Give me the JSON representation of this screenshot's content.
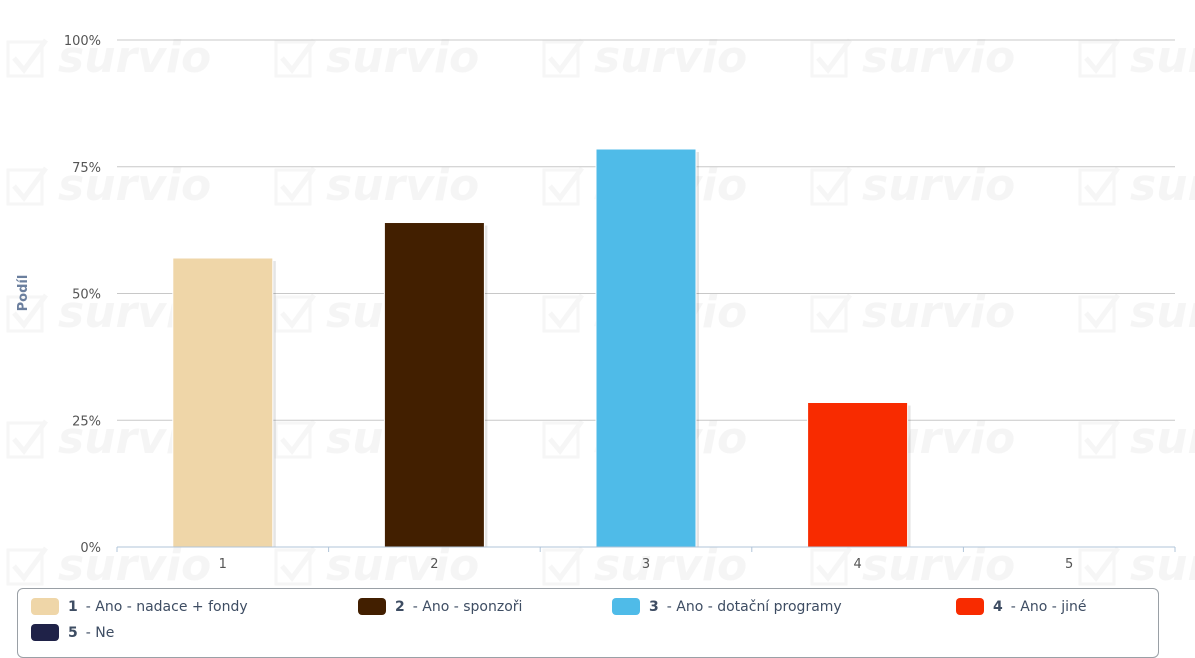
{
  "watermark_text": "survio",
  "chart_data": {
    "type": "bar",
    "ylabel": "Podíl",
    "xlabel": "",
    "ylim": [
      0,
      100
    ],
    "y_ticks": [
      "0%",
      "25%",
      "50%",
      "75%",
      "100%"
    ],
    "categories": [
      "1",
      "2",
      "3",
      "4",
      "5"
    ],
    "values": [
      57,
      64,
      78.5,
      28.5,
      0
    ],
    "colors": [
      "#efd6a8",
      "#421f00",
      "#4fbbe8",
      "#f82b00",
      "#1f2248"
    ],
    "grid": true,
    "legend_position": "bottom"
  },
  "legend": {
    "items": [
      {
        "num": "1",
        "label": "- Ano - nadace + fondy",
        "color": "#efd6a8"
      },
      {
        "num": "2",
        "label": "- Ano - sponzoři",
        "color": "#421f00"
      },
      {
        "num": "3",
        "label": "- Ano - dotační programy",
        "color": "#4fbbe8"
      },
      {
        "num": "4",
        "label": "- Ano - jiné",
        "color": "#f82b00"
      },
      {
        "num": "5",
        "label": "- Ne",
        "color": "#1f2248"
      }
    ]
  }
}
